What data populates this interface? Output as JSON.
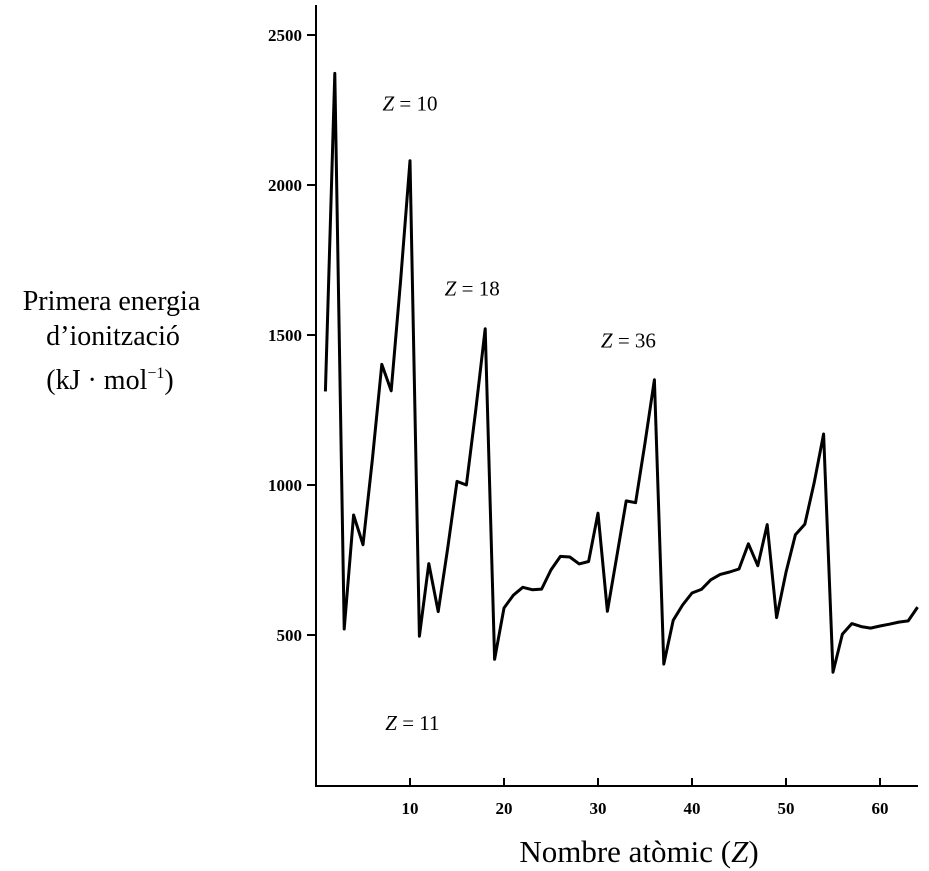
{
  "chart_data": {
    "type": "line",
    "title": "",
    "ylabel_lines": [
      "Primera energia",
      "d’ionització",
      "(kJ · mol",
      "−1",
      ")"
    ],
    "xlabel_parts": [
      "Nombre atòmic (",
      "Z",
      ")"
    ],
    "xlim": [
      0,
      64
    ],
    "ylim": [
      0,
      2500
    ],
    "x_ticks": [
      10,
      20,
      30,
      40,
      50,
      60
    ],
    "x_tick_labels": [
      "10",
      "20",
      "30",
      "40",
      "50",
      "60"
    ],
    "y_ticks": [
      500,
      1000,
      1500,
      2000,
      2500
    ],
    "y_tick_labels": [
      "500",
      "1000",
      "1500",
      "2000",
      "2500"
    ],
    "grid": false,
    "series": [
      {
        "x": [
          1,
          2,
          3,
          4,
          5,
          6,
          7,
          8,
          9,
          10,
          11,
          12,
          13,
          14,
          15,
          16,
          17,
          18,
          19,
          20,
          21,
          22,
          23,
          24,
          25,
          26,
          27,
          28,
          29,
          30,
          31,
          32,
          33,
          34,
          35,
          36,
          37,
          38,
          39,
          40,
          41,
          42,
          43,
          44,
          45,
          46,
          47,
          48,
          49,
          50,
          51,
          52,
          53,
          54,
          55,
          56,
          57,
          58,
          59,
          60,
          61,
          62,
          63,
          64
        ],
        "y": [
          1312,
          2372,
          520,
          900,
          801,
          1086,
          1402,
          1314,
          1681,
          2081,
          496,
          738,
          578,
          787,
          1012,
          1000,
          1251,
          1521,
          419,
          590,
          633,
          659,
          651,
          653,
          717,
          762,
          760,
          737,
          745,
          906,
          579,
          762,
          947,
          941,
          1140,
          1351,
          403,
          549,
          600,
          640,
          652,
          684,
          702,
          710,
          720,
          804,
          731,
          868,
          558,
          709,
          834,
          869,
          1008,
          1170,
          376,
          503,
          538,
          528,
          523,
          530,
          536,
          543,
          547,
          593
        ]
      }
    ],
    "annotations": [
      {
        "z": "Z",
        "rest": " = 10",
        "x": 10,
        "y": 2081
      },
      {
        "z": "Z",
        "rest": " = 18",
        "x": 18,
        "y": 1521
      },
      {
        "z": "Z",
        "rest": " = 36",
        "x": 36,
        "y": 1351
      },
      {
        "z": "Z",
        "rest": " = 11",
        "x": 11,
        "y": 496
      }
    ]
  }
}
